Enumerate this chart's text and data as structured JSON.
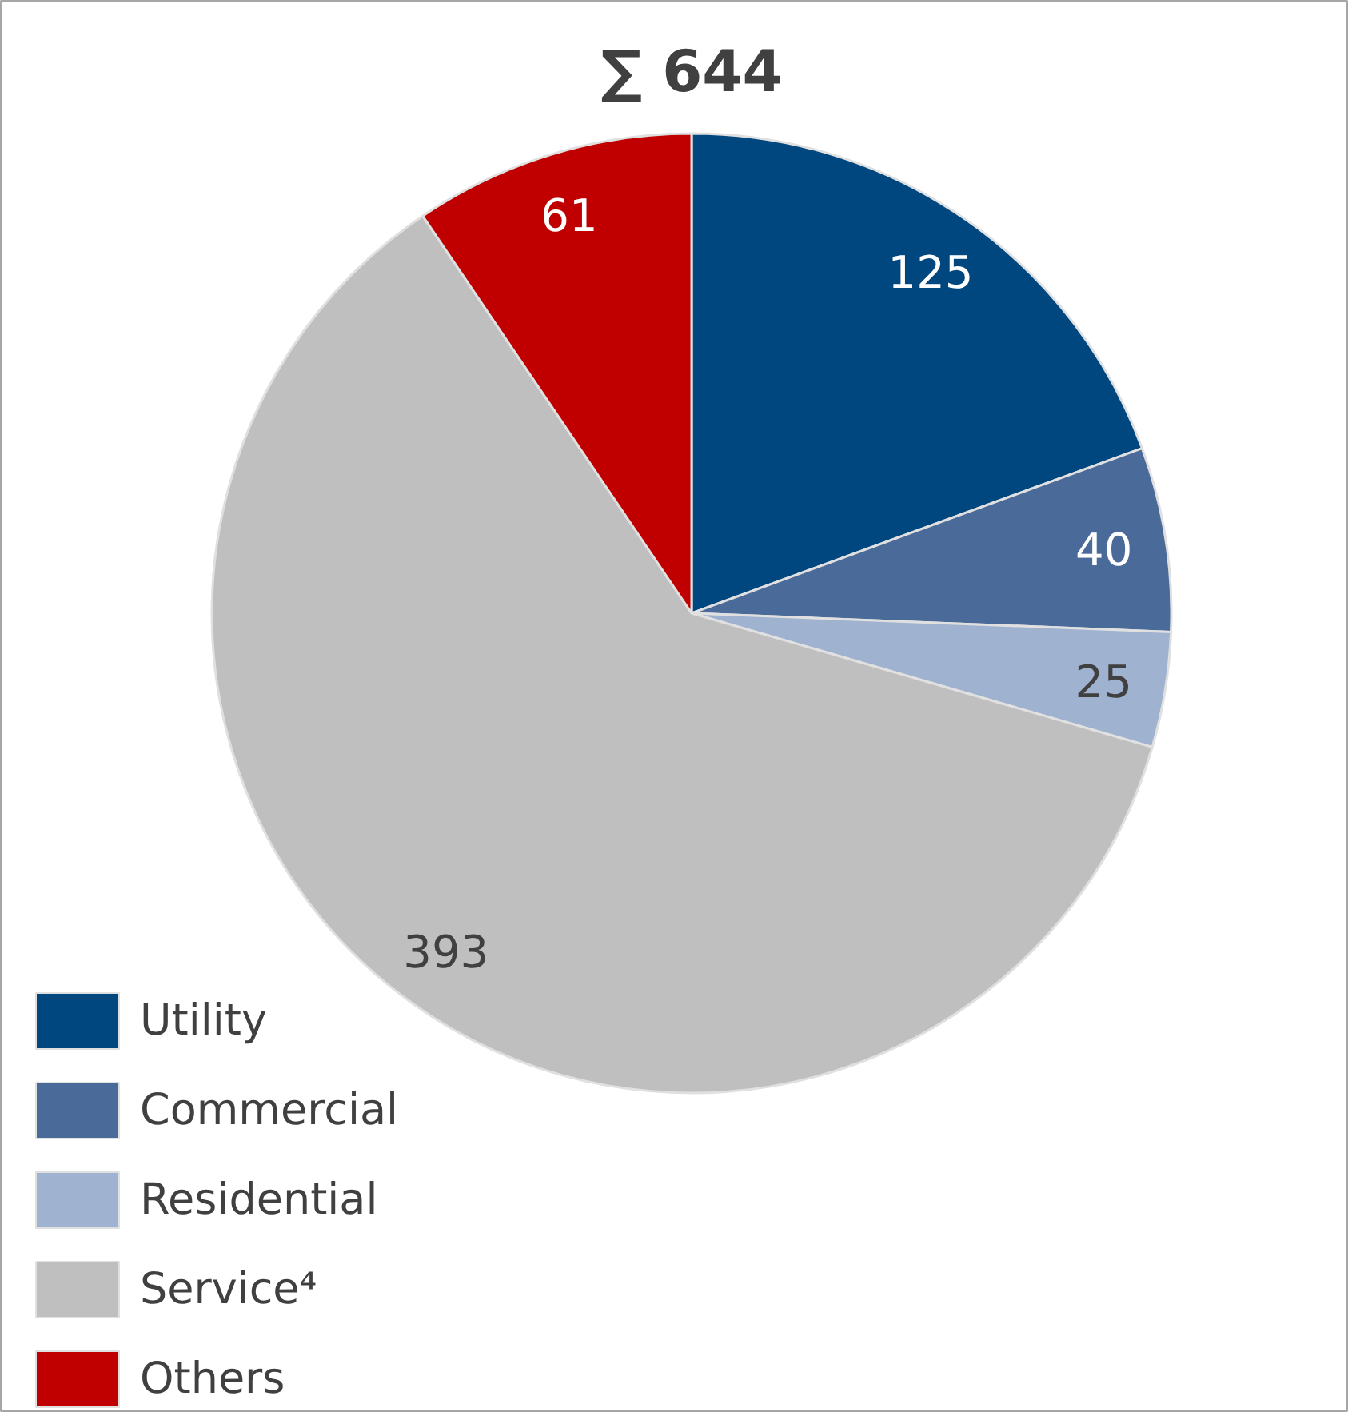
{
  "chart_data": {
    "type": "pie",
    "title": "∑ 644",
    "categories": [
      "Utility",
      "Commercial",
      "Residential",
      "Service⁴",
      "Others"
    ],
    "values": [
      125,
      40,
      25,
      393,
      61
    ],
    "colors": [
      "#00467f",
      "#4a6b9a",
      "#9fb3d1",
      "#bfbfbf",
      "#c00000"
    ],
    "data_labels": true,
    "legend": "bottom left"
  }
}
